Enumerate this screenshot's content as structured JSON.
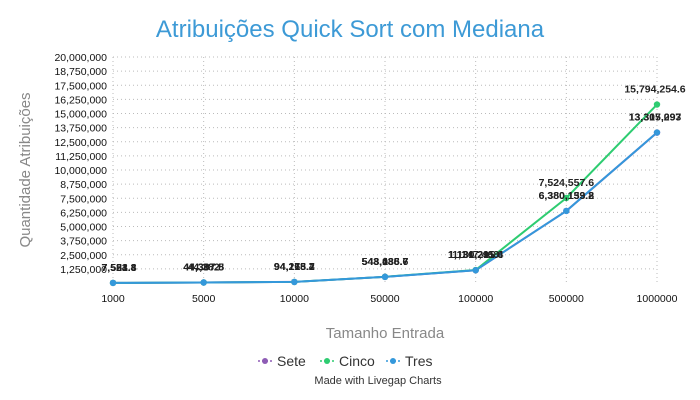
{
  "chart_data": {
    "type": "line",
    "title": "Atribuições Quick Sort com Mediana",
    "xlabel": "Tamanho Entrada",
    "ylabel": "Quantidade Atribuições",
    "categories": [
      "1000",
      "5000",
      "10000",
      "50000",
      "100000",
      "500000",
      "1000000"
    ],
    "yticks": [
      "1,250,000",
      "2,500,000",
      "3,750,000",
      "5,000,000",
      "6,250,000",
      "7,500,000",
      "8,750,000",
      "10,000,000",
      "11,250,000",
      "12,500,000",
      "13,750,000",
      "15,000,000",
      "16,250,000",
      "17,500,000",
      "18,750,000",
      "20,000,000"
    ],
    "ylim": [
      0,
      20000000
    ],
    "grid": true,
    "legend_position": "bottom-center",
    "series": [
      {
        "name": "Sete",
        "color": "#8e5cb5",
        "values": [
          7554.8,
          44307.8,
          94165.4,
          543088.7,
          1130211.6,
          6380133.8,
          13307297
        ],
        "labels": [
          "7,554.8",
          "44,307.8",
          "94,165.4",
          "543,088.7",
          "1,130,211.6",
          "6,380,133.8",
          "13,307,297"
        ]
      },
      {
        "name": "Cinco",
        "color": "#2ecc71",
        "values": [
          7581.4,
          44382,
          94213.2,
          548435.7,
          1147468,
          7524557.6,
          15794254.6
        ],
        "labels": [
          "7,581.4",
          "44,382",
          "94,213.2",
          "548,435.7",
          "1,147,468",
          "7,524,557.6",
          "15,794,254.6"
        ]
      },
      {
        "name": "Tres",
        "color": "#3498db",
        "values": [
          7523.3,
          44387.5,
          94178.7,
          543136.6,
          1131295.4,
          6380159.2,
          13315093
        ],
        "labels": [
          "7,523.3",
          "44,387.5",
          "94,178.7",
          "543,136.6",
          "1,131,295.4",
          "6,380,159.2",
          "13,315,093"
        ]
      }
    ]
  },
  "credit": "Made with Livegap Charts",
  "colors": {
    "title": "#3d9ad6",
    "grid": "#bbbbbb"
  }
}
